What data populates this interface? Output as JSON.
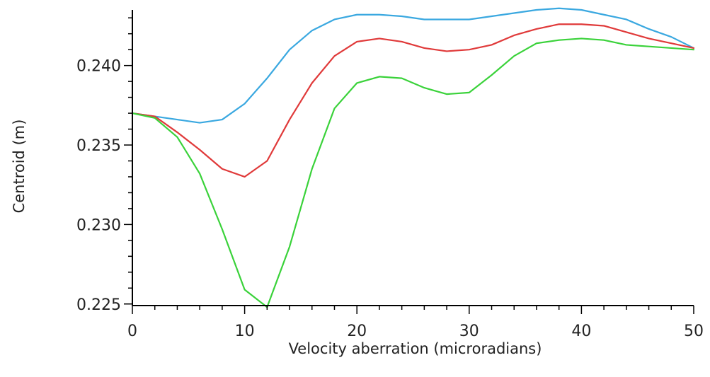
{
  "chart_data": {
    "type": "line",
    "xlabel": "Velocity aberration (microradians)",
    "ylabel": "Centroid (m)",
    "xlim": [
      0,
      50
    ],
    "ylim": [
      0.2249,
      0.2435
    ],
    "x_ticks": [
      0,
      10,
      20,
      30,
      40,
      50
    ],
    "x_tick_labels": [
      "0",
      "10",
      "20",
      "30",
      "40",
      "50"
    ],
    "y_ticks": [
      0.225,
      0.23,
      0.235,
      0.24
    ],
    "y_tick_labels": [
      "0.225",
      "0.230",
      "0.235",
      "0.240"
    ],
    "grid": false,
    "x": [
      0,
      2,
      4,
      6,
      8,
      10,
      12,
      14,
      16,
      18,
      20,
      22,
      24,
      26,
      28,
      30,
      32,
      34,
      36,
      38,
      40,
      42,
      44,
      46,
      48,
      50
    ],
    "series": [
      {
        "color": "#3aa8e0",
        "values": [
          0.237,
          0.2368,
          0.2366,
          0.2364,
          0.2366,
          0.2376,
          0.2392,
          0.241,
          0.2422,
          0.2429,
          0.2432,
          0.2432,
          0.2431,
          0.2429,
          0.2429,
          0.2429,
          0.2431,
          0.2433,
          0.2435,
          0.2436,
          0.2435,
          0.2432,
          0.2429,
          0.2423,
          0.2418,
          0.2411
        ]
      },
      {
        "color": "#e03a3a",
        "values": [
          0.237,
          0.2368,
          0.2358,
          0.2347,
          0.2335,
          0.233,
          0.234,
          0.2366,
          0.2389,
          0.2406,
          0.2415,
          0.2417,
          0.2415,
          0.2411,
          0.2409,
          0.241,
          0.2413,
          0.2419,
          0.2423,
          0.2426,
          0.2426,
          0.2425,
          0.2421,
          0.2417,
          0.2414,
          0.2411
        ]
      },
      {
        "color": "#3ad23a",
        "values": [
          0.237,
          0.2367,
          0.2355,
          0.2332,
          0.2297,
          0.2259,
          0.2248,
          0.2286,
          0.2335,
          0.2373,
          0.2389,
          0.2393,
          0.2392,
          0.2386,
          0.2382,
          0.2383,
          0.2394,
          0.2406,
          0.2414,
          0.2416,
          0.2417,
          0.2416,
          0.2413,
          0.2412,
          0.2411,
          0.241
        ]
      }
    ]
  }
}
